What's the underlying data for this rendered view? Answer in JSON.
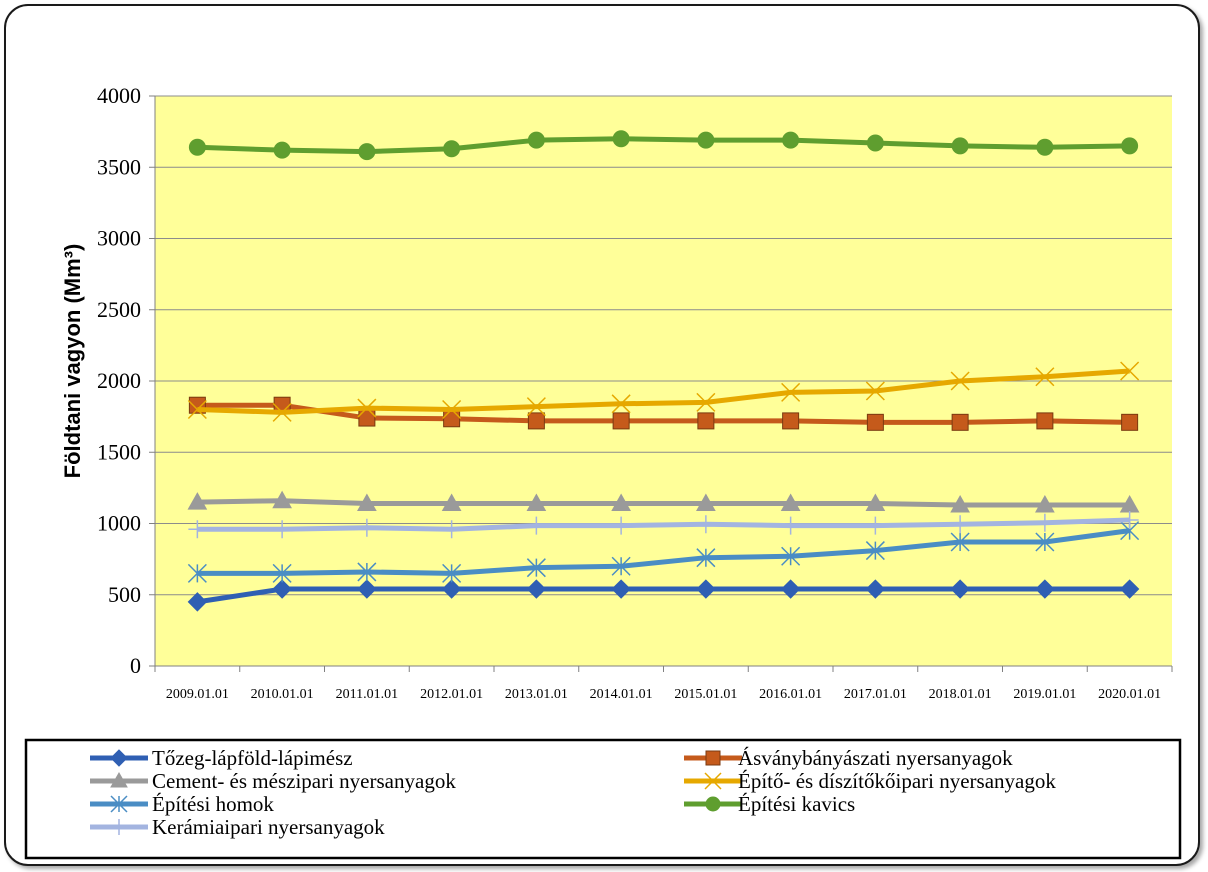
{
  "chart_data": {
    "type": "line",
    "xlabel": "",
    "ylabel": "Földtani vagyon (Mm³)",
    "ylim": [
      0,
      4000
    ],
    "yticks": [
      "0",
      "500",
      "1000",
      "1500",
      "2000",
      "2500",
      "3000",
      "3500",
      "4000"
    ],
    "categories": [
      "2009.01.01",
      "2010.01.01",
      "2011.01.01",
      "2012.01.01",
      "2013.01.01",
      "2014.01.01",
      "2015.01.01",
      "2016.01.01",
      "2017.01.01",
      "2018.01.01",
      "2019.01.01",
      "2020.01.01"
    ],
    "grid": true,
    "plot_background": "#ffff99",
    "legend_position": "bottom",
    "series": [
      {
        "name": "Tőzeg-lápföld-lápimész",
        "color": "#2f5fb3",
        "marker": "diamond",
        "values": [
          450,
          540,
          540,
          540,
          540,
          540,
          540,
          540,
          540,
          540,
          540,
          540
        ]
      },
      {
        "name": "Ásványbányászati nyersanyagok",
        "color": "#c55a1b",
        "marker": "square",
        "values": [
          1830,
          1830,
          1740,
          1735,
          1720,
          1720,
          1720,
          1720,
          1710,
          1710,
          1720,
          1710
        ]
      },
      {
        "name": "Cement- és mészipari nyersanyagok",
        "color": "#9a9a9a",
        "marker": "triangle",
        "values": [
          1150,
          1160,
          1140,
          1140,
          1140,
          1140,
          1140,
          1140,
          1140,
          1130,
          1130,
          1130
        ]
      },
      {
        "name": "Építő- és díszítőkőipari nyersanyagok",
        "color": "#e6a800",
        "marker": "x",
        "values": [
          1800,
          1780,
          1810,
          1800,
          1820,
          1840,
          1850,
          1920,
          1930,
          2000,
          2030,
          2070
        ]
      },
      {
        "name": "Építési homok",
        "color": "#4a8dc4",
        "marker": "star",
        "values": [
          650,
          650,
          660,
          650,
          690,
          700,
          760,
          770,
          810,
          870,
          870,
          950
        ]
      },
      {
        "name": "Építési kavics",
        "color": "#5f9e2f",
        "marker": "circle",
        "values": [
          3640,
          3620,
          3610,
          3630,
          3690,
          3700,
          3690,
          3690,
          3670,
          3650,
          3640,
          3650
        ]
      },
      {
        "name": "Kerámiaipari nyersanyagok",
        "color": "#a3b4e0",
        "marker": "plus",
        "values": [
          960,
          960,
          970,
          960,
          985,
          985,
          995,
          985,
          985,
          995,
          1005,
          1025
        ]
      }
    ]
  }
}
